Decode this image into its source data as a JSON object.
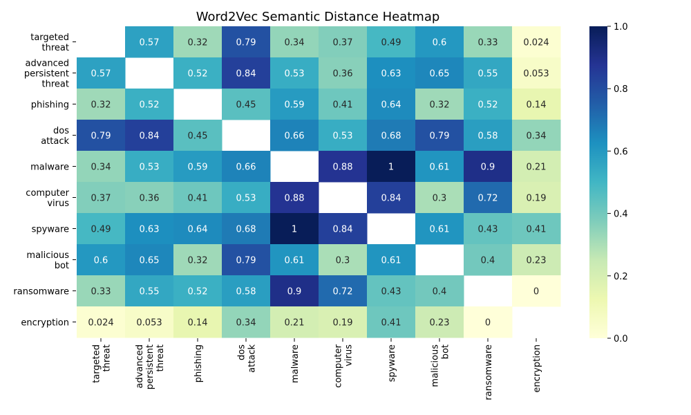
{
  "chart_data": {
    "type": "heatmap",
    "title": "Word2Vec Semantic Distance Heatmap",
    "labels": [
      "targeted threat",
      "advanced persistent threat",
      "phishing",
      "dos attack",
      "malware",
      "computer virus",
      "spyware",
      "malicious bot",
      "ransomware",
      "encryption"
    ],
    "values": [
      [
        null,
        0.57,
        0.32,
        0.79,
        0.34,
        0.37,
        0.49,
        0.6,
        0.33,
        0.024
      ],
      [
        0.57,
        null,
        0.52,
        0.84,
        0.53,
        0.36,
        0.63,
        0.65,
        0.55,
        0.053
      ],
      [
        0.32,
        0.52,
        null,
        0.45,
        0.59,
        0.41,
        0.64,
        0.32,
        0.52,
        0.14
      ],
      [
        0.79,
        0.84,
        0.45,
        null,
        0.66,
        0.53,
        0.68,
        0.79,
        0.58,
        0.34
      ],
      [
        0.34,
        0.53,
        0.59,
        0.66,
        null,
        0.88,
        1,
        0.61,
        0.9,
        0.21
      ],
      [
        0.37,
        0.36,
        0.41,
        0.53,
        0.88,
        null,
        0.84,
        0.3,
        0.72,
        0.19
      ],
      [
        0.49,
        0.63,
        0.64,
        0.68,
        1,
        0.84,
        null,
        0.61,
        0.43,
        0.41
      ],
      [
        0.6,
        0.65,
        0.32,
        0.79,
        0.61,
        0.3,
        0.61,
        null,
        0.4,
        0.23
      ],
      [
        0.33,
        0.55,
        0.52,
        0.58,
        0.9,
        0.72,
        0.43,
        0.4,
        null,
        0
      ],
      [
        0.024,
        0.053,
        0.14,
        0.34,
        0.21,
        0.19,
        0.41,
        0.23,
        0,
        null
      ]
    ],
    "vmin": 0,
    "vmax": 1,
    "colormap": "YlGnBu",
    "colorbar_ticks": [
      0.0,
      0.2,
      0.4,
      0.6,
      0.8,
      1.0
    ],
    "colorbar_tick_labels": [
      "0.0",
      "0.2",
      "0.4",
      "0.6",
      "0.8",
      "1.0"
    ],
    "diagonal": "blank"
  }
}
